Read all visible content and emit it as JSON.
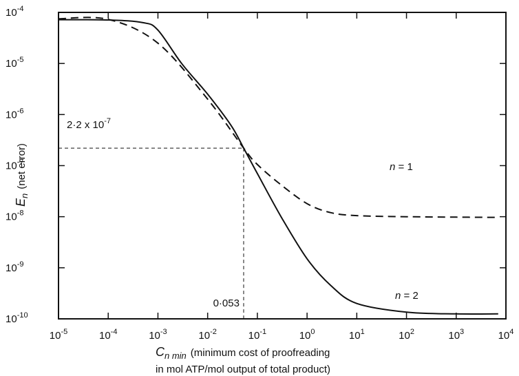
{
  "chart_data": {
    "type": "line",
    "x_scale": "log",
    "y_scale": "log",
    "xlim": [
      1e-05,
      10000.0
    ],
    "ylim": [
      1e-10,
      0.0001
    ],
    "grid": false,
    "x_tick_exponents": [
      -5,
      -4,
      -3,
      -2,
      -1,
      0,
      1,
      2,
      3,
      4
    ],
    "y_tick_exponents": [
      -4,
      -5,
      -6,
      -7,
      -8,
      -9,
      -10
    ],
    "tick_base": "10",
    "xlabel": {
      "symbol": "C",
      "symbol_sub": "n min",
      "line1": "(minimum cost of proofreading",
      "line2": "in mol ATP/mol output of total product)"
    },
    "ylabel": {
      "symbol": "E",
      "symbol_sub": "n",
      "text": "(net error)"
    },
    "series": [
      {
        "name": "n = 1",
        "label_main": "n",
        "label_rest": " = 1",
        "style": "dashed",
        "points": [
          [
            1e-05,
            7.5e-05
          ],
          [
            0.0001,
            7.3e-05
          ],
          [
            0.001,
            2.5e-05
          ],
          [
            0.01,
            2e-06
          ],
          [
            0.053,
            2.2e-07
          ],
          [
            0.1,
            1.05e-07
          ],
          [
            0.3,
            4.2e-08
          ],
          [
            1,
            1.8e-08
          ],
          [
            3,
            1.2e-08
          ],
          [
            10,
            1.05e-08
          ],
          [
            100,
            1e-08
          ],
          [
            1000,
            9.8e-09
          ],
          [
            7000,
            9.7e-09
          ]
        ]
      },
      {
        "name": "n = 2",
        "label_main": "n",
        "label_rest": " = 2",
        "style": "solid",
        "points": [
          [
            1e-05,
            7.2e-05
          ],
          [
            0.0001,
            7.1e-05
          ],
          [
            0.0005,
            6.3e-05
          ],
          [
            0.001,
            4.5e-05
          ],
          [
            0.003,
            1e-05
          ],
          [
            0.01,
            2.5e-06
          ],
          [
            0.03,
            6e-07
          ],
          [
            0.053,
            2.2e-07
          ],
          [
            0.1,
            7e-08
          ],
          [
            0.3,
            1e-08
          ],
          [
            1,
            1.5e-09
          ],
          [
            3,
            4.5e-10
          ],
          [
            10,
            2e-10
          ],
          [
            100,
            1.35e-10
          ],
          [
            1000,
            1.25e-10
          ],
          [
            7000,
            1.25e-10
          ]
        ]
      }
    ],
    "annotations": {
      "crossover_x": 0.053,
      "crossover_y": 2.2e-07,
      "x_value_text": "0·053",
      "y_value_text_mantissa": "2·2 x 10",
      "y_value_text_exponent": "-7"
    }
  }
}
